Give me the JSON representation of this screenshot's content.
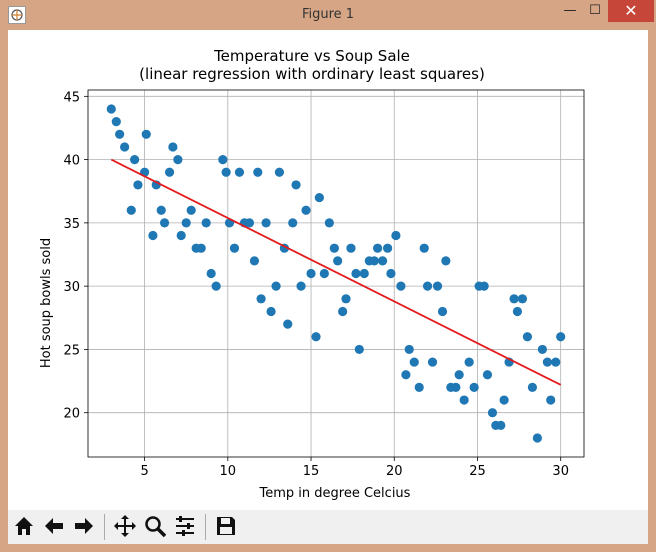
{
  "window": {
    "title": "Figure 1",
    "minimize_glyph": "—",
    "maximize_glyph": "☐",
    "close_glyph": "✕"
  },
  "toolbar": {
    "buttons": [
      {
        "name": "home-icon"
      },
      {
        "name": "back-arrow-icon"
      },
      {
        "name": "forward-arrow-icon"
      },
      {
        "name": "pan-icon"
      },
      {
        "name": "zoom-icon"
      },
      {
        "name": "configure-subplots-icon"
      },
      {
        "name": "save-icon"
      }
    ]
  },
  "chart_data": {
    "type": "scatter",
    "title": "Temperature vs Soup Sale",
    "subtitle": "(linear regression with ordinary least squares)",
    "xlabel": "Temp in degree Celcius",
    "ylabel": "Hot soup bowls sold",
    "xlim": [
      1.6,
      31.4
    ],
    "ylim": [
      16.5,
      45.5
    ],
    "xticks": [
      5,
      10,
      15,
      20,
      25,
      30
    ],
    "yticks": [
      20,
      25,
      30,
      35,
      40,
      45
    ],
    "grid": true,
    "colors": {
      "points": "#1f77b4",
      "fit_line": "#e41a1c"
    },
    "points": [
      [
        3.0,
        44
      ],
      [
        3.3,
        43
      ],
      [
        3.5,
        42
      ],
      [
        3.8,
        41
      ],
      [
        4.2,
        36
      ],
      [
        4.4,
        40
      ],
      [
        4.6,
        38
      ],
      [
        5.0,
        39
      ],
      [
        5.1,
        42
      ],
      [
        5.5,
        34
      ],
      [
        5.7,
        38
      ],
      [
        6.0,
        36
      ],
      [
        6.2,
        35
      ],
      [
        6.5,
        39
      ],
      [
        6.7,
        41
      ],
      [
        7.0,
        40
      ],
      [
        7.2,
        34
      ],
      [
        7.5,
        35
      ],
      [
        7.8,
        36
      ],
      [
        8.1,
        33
      ],
      [
        8.4,
        33
      ],
      [
        8.7,
        35
      ],
      [
        9.0,
        31
      ],
      [
        9.3,
        30
      ],
      [
        9.7,
        40
      ],
      [
        9.9,
        39
      ],
      [
        10.1,
        35
      ],
      [
        10.4,
        33
      ],
      [
        10.7,
        39
      ],
      [
        11.0,
        35
      ],
      [
        11.3,
        35
      ],
      [
        11.6,
        32
      ],
      [
        11.8,
        39
      ],
      [
        12.0,
        29
      ],
      [
        12.3,
        35
      ],
      [
        12.6,
        28
      ],
      [
        12.9,
        30
      ],
      [
        13.1,
        39
      ],
      [
        13.4,
        33
      ],
      [
        13.6,
        27
      ],
      [
        13.9,
        35
      ],
      [
        14.1,
        38
      ],
      [
        14.4,
        30
      ],
      [
        14.7,
        36
      ],
      [
        15.0,
        31
      ],
      [
        15.3,
        26
      ],
      [
        15.5,
        37
      ],
      [
        15.8,
        31
      ],
      [
        16.1,
        35
      ],
      [
        16.4,
        33
      ],
      [
        16.6,
        32
      ],
      [
        16.9,
        28
      ],
      [
        17.1,
        29
      ],
      [
        17.4,
        33
      ],
      [
        17.7,
        31
      ],
      [
        17.9,
        25
      ],
      [
        18.2,
        31
      ],
      [
        18.5,
        32
      ],
      [
        18.8,
        32
      ],
      [
        19.0,
        33
      ],
      [
        19.3,
        32
      ],
      [
        19.6,
        33
      ],
      [
        19.8,
        31
      ],
      [
        20.1,
        34
      ],
      [
        20.4,
        30
      ],
      [
        20.7,
        23
      ],
      [
        20.9,
        25
      ],
      [
        21.2,
        24
      ],
      [
        21.5,
        22
      ],
      [
        21.8,
        33
      ],
      [
        22.0,
        30
      ],
      [
        22.3,
        24
      ],
      [
        22.6,
        30
      ],
      [
        22.9,
        28
      ],
      [
        23.1,
        32
      ],
      [
        23.4,
        22
      ],
      [
        23.7,
        22
      ],
      [
        23.9,
        23
      ],
      [
        24.2,
        21
      ],
      [
        24.5,
        24
      ],
      [
        24.8,
        22
      ],
      [
        25.1,
        30
      ],
      [
        25.4,
        30
      ],
      [
        25.6,
        23
      ],
      [
        25.9,
        20
      ],
      [
        26.1,
        19
      ],
      [
        26.4,
        19
      ],
      [
        26.6,
        21
      ],
      [
        26.9,
        24
      ],
      [
        27.2,
        29
      ],
      [
        27.4,
        28
      ],
      [
        27.7,
        29
      ],
      [
        28.0,
        26
      ],
      [
        28.3,
        22
      ],
      [
        28.6,
        18
      ],
      [
        28.9,
        25
      ],
      [
        29.2,
        24
      ],
      [
        29.4,
        21
      ],
      [
        29.7,
        24
      ],
      [
        30.0,
        26
      ]
    ],
    "fit_line": {
      "x": [
        3,
        30
      ],
      "y": [
        40.0,
        22.2
      ]
    }
  }
}
